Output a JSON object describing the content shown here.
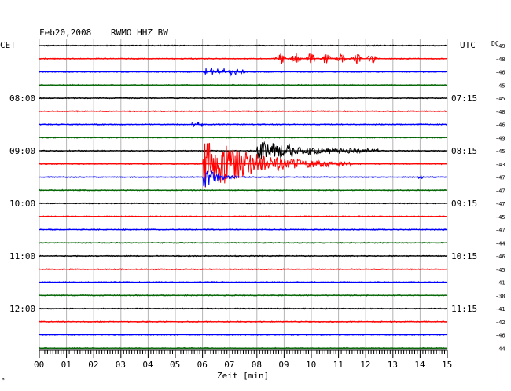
{
  "header": {
    "date": "Feb20,2008",
    "station": "RWMO HHZ BW",
    "left_zone": "CET",
    "right_zone": "UTC",
    "dc_label": "DC"
  },
  "footer": {
    "xlabel": "Zeit [min]",
    "corner_mark": "*"
  },
  "chart_data": {
    "type": "line",
    "title": "Feb20,2008 RWMO HHZ BW",
    "xlabel": "Zeit [min]",
    "ylabel": "",
    "xlim": [
      0,
      15
    ],
    "x_ticks": [
      "00",
      "01",
      "02",
      "03",
      "04",
      "05",
      "06",
      "07",
      "08",
      "09",
      "10",
      "11",
      "12",
      "13",
      "14",
      "15"
    ],
    "grid": true,
    "trace_count": 24,
    "trace_colors": [
      "#000000",
      "#ff0000",
      "#0000ff",
      "#006400"
    ],
    "left_hour_labels": [
      {
        "trace": 4,
        "label": "08:00"
      },
      {
        "trace": 8,
        "label": "09:00"
      },
      {
        "trace": 12,
        "label": "10:00"
      },
      {
        "trace": 16,
        "label": "11:00"
      },
      {
        "trace": 20,
        "label": "12:00"
      }
    ],
    "right_hour_labels": [
      {
        "trace": 4,
        "label": "07:15"
      },
      {
        "trace": 8,
        "label": "08:15"
      },
      {
        "trace": 12,
        "label": "09:15"
      },
      {
        "trace": 16,
        "label": "10:15"
      },
      {
        "trace": 20,
        "label": "11:15"
      }
    ],
    "dc_offsets": [
      "-49",
      "-48",
      "-46",
      "-45",
      "-45",
      "-48",
      "-46",
      "-49",
      "-45",
      "-43",
      "-47",
      "-47",
      "-47",
      "-45",
      "-47",
      "-44",
      "-46",
      "-45",
      "-41",
      "-38",
      "-41",
      "-42",
      "-46",
      "-44"
    ],
    "events": [
      {
        "trace": 1,
        "start_min": 8.6,
        "end_min": 12.5,
        "amplitude": 0.45,
        "kind": "bursts"
      },
      {
        "trace": 2,
        "start_min": 6.0,
        "end_min": 7.6,
        "amplitude": 0.3,
        "kind": "bursts"
      },
      {
        "trace": 6,
        "start_min": 5.6,
        "end_min": 6.0,
        "amplitude": 0.25,
        "kind": "bursts"
      },
      {
        "trace": 8,
        "start_min": 8.0,
        "end_min": 12.5,
        "amplitude": 0.9,
        "kind": "decay"
      },
      {
        "trace": 9,
        "start_min": 6.0,
        "end_min": 11.5,
        "amplitude": 2.5,
        "kind": "quake"
      },
      {
        "trace": 10,
        "start_min": 6.0,
        "end_min": 7.3,
        "amplitude": 1.3,
        "kind": "quake"
      },
      {
        "trace": 10,
        "start_min": 13.9,
        "end_min": 14.1,
        "amplitude": 0.3,
        "kind": "bursts"
      }
    ]
  }
}
